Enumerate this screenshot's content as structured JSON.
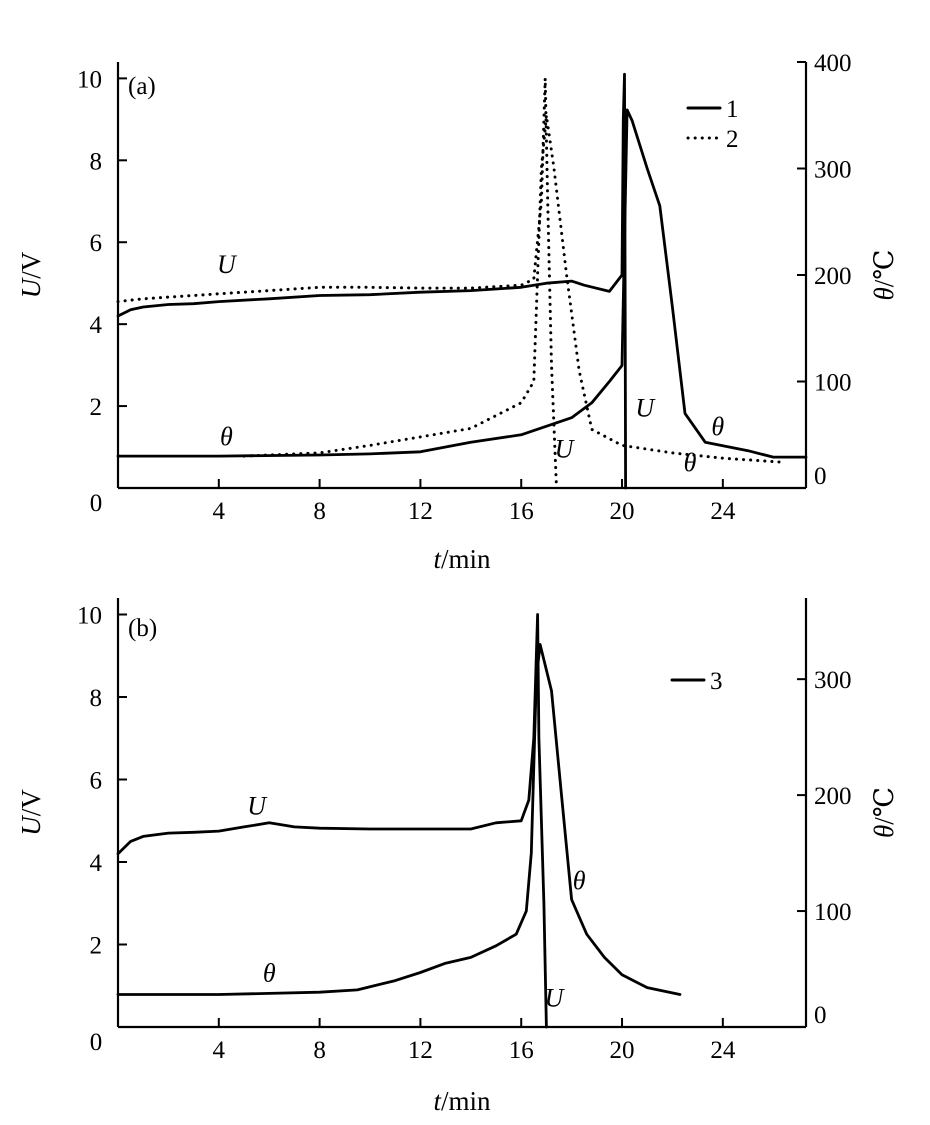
{
  "chart_data": [
    {
      "type": "line",
      "panel_label": "(a)",
      "xlabel_italic": "t",
      "xlabel_unit": "/min",
      "ylabel_italic": "U",
      "ylabel_unit": "/V",
      "y2label_italic": "θ",
      "y2label_unit": "/℃",
      "xlim": [
        0,
        27.3
      ],
      "ylim": [
        0,
        10.4
      ],
      "y2lim": [
        0,
        400
      ],
      "xticks": [
        4,
        8,
        12,
        16,
        20,
        24
      ],
      "yticks": [
        0,
        2,
        4,
        6,
        8,
        10
      ],
      "y2ticks": [
        0,
        100,
        200,
        300,
        400
      ],
      "x_origin_label": "0",
      "legend": {
        "placement": "top-right",
        "entries": [
          {
            "label": "1",
            "style": "solid"
          },
          {
            "label": "2",
            "style": "dotted"
          }
        ]
      },
      "series": [
        {
          "legend": "1",
          "quantity": "U",
          "axis": "left",
          "style": "solid",
          "x": [
            0,
            0.5,
            1,
            2,
            3,
            4,
            6,
            8,
            10,
            12,
            14,
            16,
            17,
            18,
            18.5,
            19.5,
            20,
            20.05,
            20.1,
            20.12,
            20.14
          ],
          "y": [
            4.2,
            4.35,
            4.42,
            4.48,
            4.5,
            4.55,
            4.62,
            4.7,
            4.72,
            4.78,
            4.82,
            4.9,
            5.0,
            5.05,
            4.95,
            4.8,
            5.2,
            9.0,
            10.1,
            5.0,
            0
          ]
        },
        {
          "legend": "1",
          "quantity": "θ",
          "axis": "right",
          "style": "solid",
          "x": [
            0,
            4,
            8,
            10,
            12,
            14,
            16,
            18,
            18.8,
            19.5,
            20,
            20.2,
            20.4,
            21,
            21.5,
            22,
            22.5,
            23.3,
            25,
            26,
            27.3
          ],
          "y": [
            30,
            30,
            31,
            32,
            34,
            43,
            50,
            66,
            80,
            100,
            115,
            355,
            345,
            300,
            265,
            170,
            70,
            43,
            35,
            29,
            29
          ]
        },
        {
          "legend": "2",
          "quantity": "U",
          "axis": "left",
          "style": "dotted",
          "x": [
            0,
            1,
            2,
            3,
            4,
            6,
            8,
            10,
            12,
            14,
            16,
            16.5,
            16.8,
            16.95,
            17.05,
            17.2,
            17.4
          ],
          "y": [
            4.55,
            4.62,
            4.66,
            4.7,
            4.74,
            4.82,
            4.9,
            4.9,
            4.88,
            4.88,
            4.95,
            5.1,
            7.0,
            10.0,
            7.0,
            3.0,
            0
          ]
        },
        {
          "legend": "2",
          "quantity": "θ",
          "axis": "right",
          "style": "dotted",
          "x": [
            5,
            6,
            8,
            10,
            12,
            14,
            16,
            16.5,
            16.8,
            17,
            17.3,
            17.8,
            18.3,
            18.8,
            20,
            22,
            24,
            26.5
          ],
          "y": [
            30,
            31,
            33,
            40,
            48,
            56,
            80,
            100,
            300,
            350,
            300,
            200,
            110,
            55,
            40,
            33,
            28,
            24
          ]
        }
      ],
      "curve_labels": [
        {
          "text": "U",
          "x": 4.3,
          "y_left": 5.25
        },
        {
          "text": "θ",
          "x": 4.3,
          "y_left": 1.05
        },
        {
          "text": "U",
          "x": 17.7,
          "y_left": 0.75
        },
        {
          "text": "U",
          "x": 20.9,
          "y_left": 1.75
        },
        {
          "text": "θ",
          "x": 23.8,
          "y_left": 1.3
        },
        {
          "text": "θ",
          "x": 22.7,
          "y_left": 0.42
        }
      ]
    },
    {
      "type": "line",
      "panel_label": "(b)",
      "xlabel_italic": "t",
      "xlabel_unit": "/min",
      "ylabel_italic": "U",
      "ylabel_unit": "/V",
      "y2label_italic": "θ",
      "y2label_unit": "/℃",
      "xlim": [
        0,
        27.3
      ],
      "ylim": [
        0,
        10.4
      ],
      "y2lim": [
        0,
        370
      ],
      "xticks": [
        4,
        8,
        12,
        16,
        20,
        24
      ],
      "yticks": [
        0,
        2,
        4,
        6,
        8,
        10
      ],
      "y2ticks": [
        0,
        100,
        200,
        300
      ],
      "x_origin_label": "0",
      "legend": {
        "placement": "top-right",
        "entries": [
          {
            "label": "3",
            "style": "solid"
          }
        ]
      },
      "series": [
        {
          "legend": "3",
          "quantity": "U",
          "axis": "left",
          "style": "solid",
          "x": [
            0,
            0.5,
            1,
            2,
            3,
            4,
            5,
            6,
            7,
            8,
            10,
            12,
            14,
            15,
            16,
            16.3,
            16.5,
            16.65,
            16.7,
            16.9,
            17.0
          ],
          "y": [
            4.2,
            4.5,
            4.62,
            4.7,
            4.72,
            4.75,
            4.85,
            4.95,
            4.85,
            4.82,
            4.8,
            4.8,
            4.8,
            4.95,
            5.0,
            5.5,
            7.0,
            10.0,
            7.0,
            3.0,
            0
          ]
        },
        {
          "legend": "3",
          "quantity": "θ",
          "axis": "right",
          "style": "solid",
          "x": [
            0,
            4,
            6,
            8,
            9.5,
            11,
            12,
            13,
            14,
            15,
            15.8,
            16.2,
            16.4,
            16.6,
            16.75,
            17.2,
            17.6,
            18,
            18.6,
            19.3,
            20,
            21,
            22.3
          ],
          "y": [
            28,
            28,
            29,
            30,
            32,
            40,
            47,
            55,
            60,
            70,
            80,
            100,
            150,
            300,
            330,
            290,
            200,
            110,
            80,
            60,
            45,
            34,
            28
          ]
        }
      ],
      "curve_labels": [
        {
          "text": "U",
          "x": 5.5,
          "y_left": 5.15
        },
        {
          "text": "θ",
          "x": 6.0,
          "y_left": 1.1
        },
        {
          "text": "θ",
          "x": 18.3,
          "y_left": 3.35
        },
        {
          "text": "U",
          "x": 17.3,
          "y_left": 0.5
        }
      ]
    }
  ]
}
